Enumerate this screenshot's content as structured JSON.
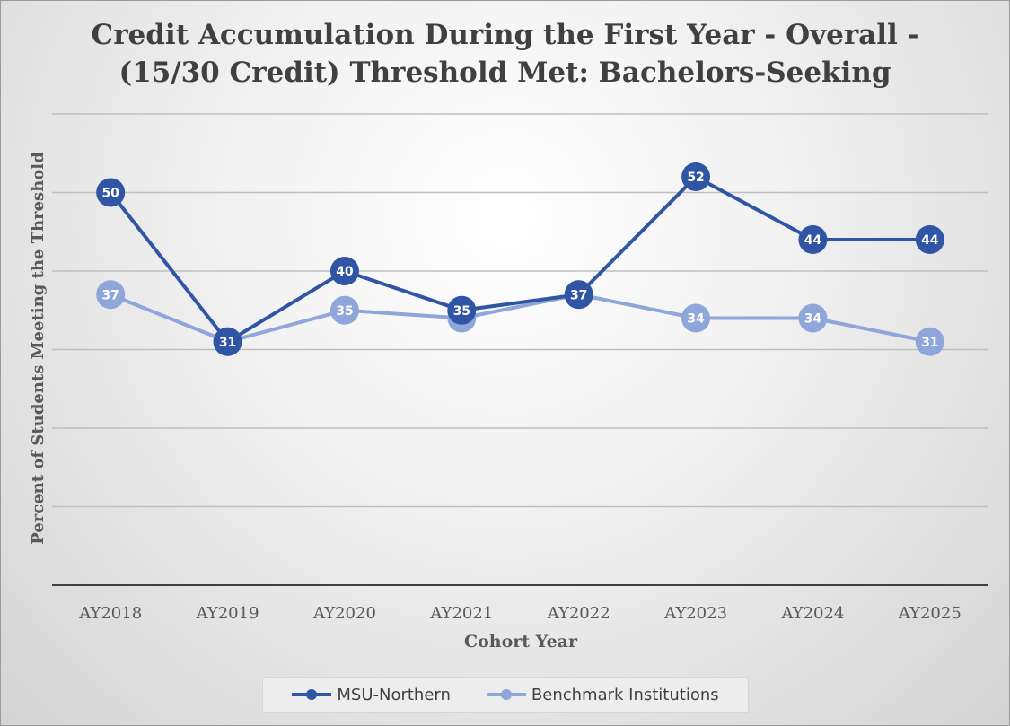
{
  "chart_data": {
    "type": "line",
    "title_lines": [
      "Credit Accumulation During the First Year - Overall -",
      "(15/30 Credit) Threshold Met: Bachelors-Seeking"
    ],
    "xlabel": "Cohort Year",
    "ylabel": "Percent of Students Meeting the Threshold",
    "categories": [
      "AY2018",
      "AY2019",
      "AY2020",
      "AY2021",
      "AY2022",
      "AY2023",
      "AY2024",
      "AY2025"
    ],
    "ylim": [
      0,
      60
    ],
    "y_gridlines": [
      10,
      20,
      30,
      40,
      50,
      60
    ],
    "y_tick_labels_shown": false,
    "grid": true,
    "legend_position": "bottom",
    "series": [
      {
        "name": "MSU-Northern",
        "values": [
          50,
          31,
          40,
          35,
          37,
          52,
          44,
          44
        ],
        "color": "#2f55a4",
        "label_color": "#ffffff"
      },
      {
        "name": "Benchmark Institutions",
        "values": [
          37,
          31,
          35,
          34,
          37,
          34,
          34,
          31
        ],
        "color": "#8fa6db",
        "label_color": "#ffffff"
      }
    ]
  }
}
